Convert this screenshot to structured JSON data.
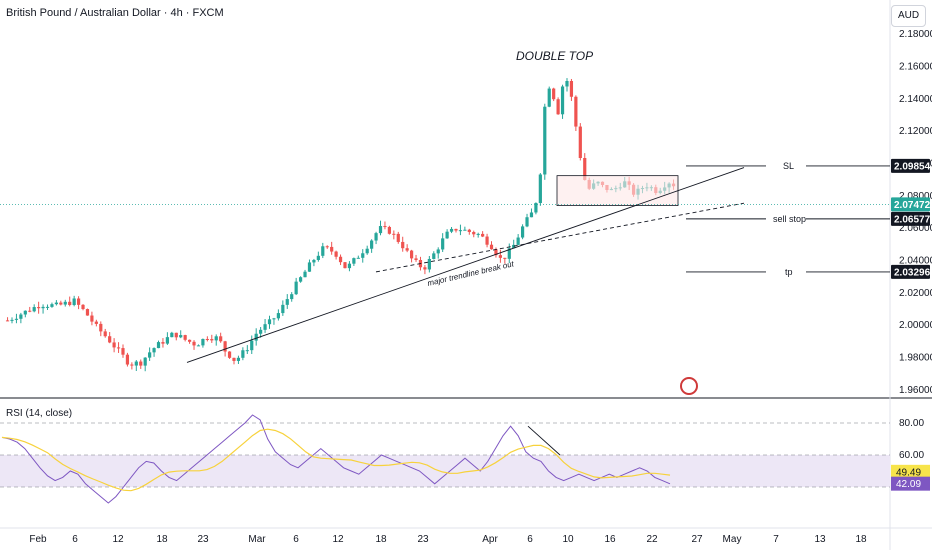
{
  "header": {
    "title": "British Pound / Australian Dollar · 4h · FXCM",
    "currency": "AUD"
  },
  "annotations": {
    "double_top": "DOUBLE TOP",
    "trendline": "major trendline break out",
    "sl": "SL",
    "sell_stop": "sell stop",
    "tp": "tp"
  },
  "rsi": {
    "title": "RSI (14, close)",
    "levels": [
      80,
      60,
      40
    ],
    "value_ma": "49.49",
    "value_rsi": "42.09",
    "badge_colors": {
      "ma": "#f7e44a",
      "rsi": "#7e57c2"
    }
  },
  "price_labels": {
    "sl": "2.09854",
    "current": "2.07472",
    "sell_stop": "2.06577",
    "tp": "2.03296"
  },
  "colors": {
    "up": "#26a69a",
    "down": "#ef5350",
    "rsi_line": "#7e57c2",
    "rsi_ma": "#f7d23c",
    "rsi_band": "#ede7f6",
    "box_fill": "#fde8e8",
    "current_line": "#26a69a"
  },
  "chart_data": {
    "type": "candlestick",
    "ylim": [
      1.955,
      2.19
    ],
    "y_ticks": [
      "2.18000",
      "2.16000",
      "2.14000",
      "2.12000",
      "2.10000",
      "2.08000",
      "2.06000",
      "2.04000",
      "2.02000",
      "2.00000",
      "1.98000",
      "1.96000"
    ],
    "x_ticks": [
      "Feb",
      "6",
      "12",
      "18",
      "23",
      "Mar",
      "6",
      "12",
      "18",
      "23",
      "Apr",
      "6",
      "10",
      "16",
      "22",
      "27",
      "May",
      "7",
      "13",
      "18"
    ],
    "price_path": [
      [
        1,
        2.003
      ],
      [
        4,
        2.008
      ],
      [
        7,
        2.013
      ],
      [
        10,
        2.012
      ],
      [
        13,
        2.015
      ],
      [
        15,
        2.008
      ],
      [
        17,
        1.999
      ],
      [
        19,
        1.992
      ],
      [
        21,
        1.984
      ],
      [
        23,
        1.976
      ],
      [
        25,
        1.977
      ],
      [
        27,
        1.985
      ],
      [
        29,
        1.99
      ],
      [
        31,
        1.995
      ],
      [
        33,
        1.991
      ],
      [
        35,
        1.988
      ],
      [
        37,
        1.993
      ],
      [
        39,
        1.992
      ],
      [
        40,
        1.985
      ],
      [
        42,
        1.978
      ],
      [
        44,
        1.985
      ],
      [
        46,
        1.996
      ],
      [
        48,
        2.001
      ],
      [
        50,
        2.008
      ],
      [
        52,
        2.02
      ],
      [
        54,
        2.03
      ],
      [
        56,
        2.04
      ],
      [
        58,
        2.048
      ],
      [
        60,
        2.045
      ],
      [
        62,
        2.035
      ],
      [
        64,
        2.042
      ],
      [
        66,
        2.05
      ],
      [
        68,
        2.06
      ],
      [
        70,
        2.058
      ],
      [
        72,
        2.05
      ],
      [
        74,
        2.04
      ],
      [
        76,
        2.035
      ],
      [
        78,
        2.045
      ],
      [
        80,
        2.056
      ],
      [
        82,
        2.06
      ],
      [
        84,
        2.058
      ],
      [
        86,
        2.056
      ],
      [
        88,
        2.05
      ],
      [
        90,
        2.04
      ],
      [
        92,
        2.048
      ],
      [
        94,
        2.062
      ],
      [
        96,
        2.072
      ],
      [
        97,
        2.095
      ],
      [
        98,
        2.145
      ],
      [
        99,
        2.15
      ],
      [
        100,
        2.128
      ],
      [
        101,
        2.148
      ],
      [
        102,
        2.152
      ],
      [
        103,
        2.133
      ],
      [
        104,
        2.108
      ],
      [
        105,
        2.09
      ],
      [
        106,
        2.083
      ],
      [
        107,
        2.089
      ],
      [
        108,
        2.086
      ],
      [
        110,
        2.083
      ],
      [
        112,
        2.089
      ],
      [
        114,
        2.081
      ],
      [
        116,
        2.087
      ],
      [
        118,
        2.083
      ],
      [
        120,
        2.089
      ],
      [
        122,
        2.085
      ],
      [
        123,
        2.072
      ]
    ],
    "rsi": [
      71,
      70,
      68,
      64,
      58,
      52,
      47,
      44,
      46,
      50,
      48,
      42,
      38,
      34,
      30,
      34,
      40,
      46,
      52,
      56,
      55,
      50,
      46,
      44,
      48,
      52,
      56,
      60,
      64,
      68,
      72,
      76,
      80,
      85,
      82,
      70,
      62,
      58,
      54,
      52,
      56,
      60,
      64,
      60,
      56,
      52,
      50,
      48,
      52,
      56,
      60,
      58,
      56,
      54,
      52,
      50,
      46,
      42,
      46,
      50,
      54,
      58,
      54,
      50,
      56,
      64,
      72,
      78,
      72,
      62,
      58,
      56,
      50,
      46,
      44,
      46,
      48,
      46,
      44,
      46,
      48,
      46,
      48,
      50,
      52,
      50,
      46,
      44,
      42
    ],
    "levels": {
      "sl": 2.09854,
      "current": 2.07472,
      "sell_stop": 2.06577,
      "tp": 2.03296
    }
  }
}
